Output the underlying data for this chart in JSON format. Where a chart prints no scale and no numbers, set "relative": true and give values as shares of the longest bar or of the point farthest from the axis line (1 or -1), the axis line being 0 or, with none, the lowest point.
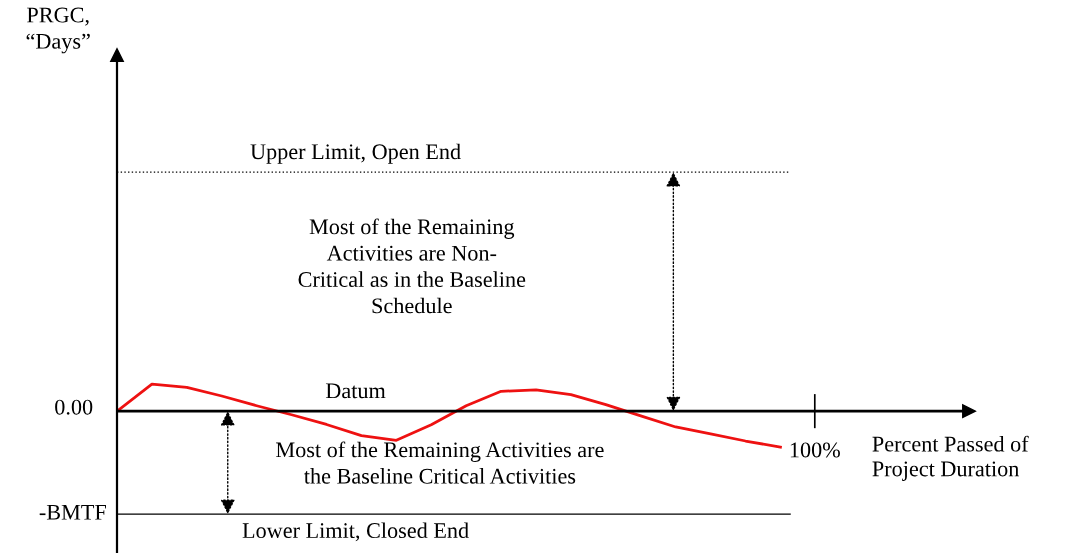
{
  "chart_data": {
    "type": "line",
    "relative": true,
    "xlabel": "Percent Passed of\nProject Duration",
    "categories": [
      null,
      null,
      null,
      null,
      null,
      null,
      null,
      null,
      null,
      null,
      null,
      null,
      null,
      null,
      null,
      null,
      null,
      null,
      null,
      null
    ],
    "series": [
      {
        "color": "#ee1111",
        "values": [
          0,
          0.75,
          0.66,
          0.42,
          0.15,
          -0.1,
          -0.37,
          -0.68,
          -0.81,
          -0.38,
          0.15,
          0.55,
          0.59,
          0.46,
          0.18,
          -0.13,
          -0.44,
          -0.63,
          -0.83,
          -1
        ]
      }
    ],
    "ref_lines": [
      {
        "axis": "y",
        "value": 6.64,
        "label": "Upper Limit, Open End",
        "color": "#000000",
        "line_style": "dotted"
      },
      {
        "axis": "y",
        "value": 0,
        "label": "Datum",
        "color": "#000000",
        "line_style": "solid"
      },
      {
        "axis": "y",
        "value": -2.86,
        "label": "Lower Limit, Closed End",
        "color": "#000000",
        "line_style": "solid"
      }
    ],
    "annotations": [
      "Most of the Remaining\nActivities are Non-\nCritical as in the Baseline\nSchedule",
      "Most of the Remaining Activities are\nthe Baseline Critical Activities",
      "0.00",
      "-BMTF",
      "100%",
      "PRGC,\n“Days”"
    ],
    "legend": false,
    "marker": "none",
    "line_style": "solid"
  }
}
